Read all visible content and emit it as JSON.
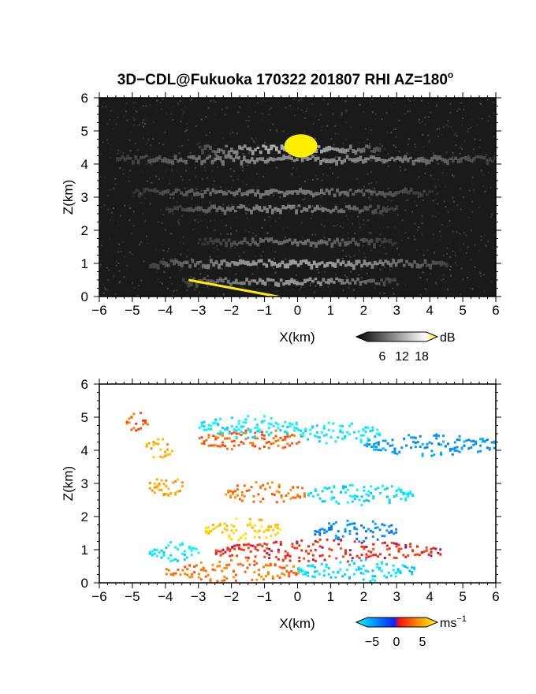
{
  "chart_data": [
    {
      "type": "heatmap",
      "title": "3D−CDL@Fukuoka 170322 201807 RHI AZ=180",
      "title_superscript": "o",
      "xlabel": "X(km)",
      "ylabel": "Z(km)",
      "xlim": [
        -6,
        6
      ],
      "ylim": [
        0,
        6
      ],
      "x_ticks": [
        "−6",
        "−5",
        "−4",
        "−3",
        "−2",
        "−1",
        "0",
        "1",
        "2",
        "3",
        "4",
        "5",
        "6"
      ],
      "y_ticks": [
        "0",
        "1",
        "2",
        "3",
        "4",
        "5",
        "6"
      ],
      "colorbar": {
        "label": "dB",
        "ticks": [
          "6",
          "12",
          "18"
        ],
        "range": [
          0,
          21
        ],
        "colormap": "grayscale"
      },
      "features": [
        {
          "kind": "layer",
          "z": 4.1,
          "x": [
            -5.5,
            6
          ],
          "intensity": 10
        },
        {
          "kind": "layer",
          "z": 4.4,
          "x": [
            -3,
            2.5
          ],
          "intensity": 14
        },
        {
          "kind": "layer",
          "z": 3.1,
          "x": [
            -5,
            4
          ],
          "intensity": 8
        },
        {
          "kind": "layer",
          "z": 2.6,
          "x": [
            -4,
            3
          ],
          "intensity": 9
        },
        {
          "kind": "layer",
          "z": 1.6,
          "x": [
            -3,
            3
          ],
          "intensity": 7
        },
        {
          "kind": "layer",
          "z": 0.95,
          "x": [
            -4.5,
            4.5
          ],
          "intensity": 12
        },
        {
          "kind": "layer",
          "z": 0.4,
          "x": [
            -3.5,
            3
          ],
          "intensity": 11
        },
        {
          "kind": "saturated",
          "x": [
            -0.4,
            0.6
          ],
          "z": [
            4.2,
            4.9
          ],
          "color": "#ffee00"
        },
        {
          "kind": "terrain",
          "x": [
            -3.3,
            -0.6
          ],
          "z": [
            0.5,
            0.0
          ],
          "color": "#ffee00"
        }
      ]
    },
    {
      "type": "heatmap",
      "xlabel": "X(km)",
      "ylabel": "Z(km)",
      "xlim": [
        -6,
        6
      ],
      "ylim": [
        0,
        6
      ],
      "x_ticks": [
        "−6",
        "−5",
        "−4",
        "−3",
        "−2",
        "−1",
        "0",
        "1",
        "2",
        "3",
        "4",
        "5",
        "6"
      ],
      "y_ticks": [
        "0",
        "1",
        "2",
        "3",
        "4",
        "5",
        "6"
      ],
      "colorbar": {
        "label": "ms",
        "label_superscript": "−1",
        "ticks": [
          "−5",
          "0",
          "5"
        ],
        "range": [
          -7,
          7
        ],
        "colormap": "doppler"
      },
      "features": [
        {
          "z": 4.9,
          "x": [
            -5.2,
            -4.5
          ],
          "v": 2.5
        },
        {
          "z": 4.1,
          "x": [
            -4.6,
            -3.8
          ],
          "v": 4.5
        },
        {
          "z": 4.35,
          "x": [
            -3.0,
            0.1
          ],
          "v": 2.5
        },
        {
          "z": 4.75,
          "x": [
            -3.0,
            0.0
          ],
          "v": -6.5
        },
        {
          "z": 4.55,
          "x": [
            0.0,
            2.5
          ],
          "v": -6.5
        },
        {
          "z": 4.2,
          "x": [
            2.0,
            6.0
          ],
          "v": -4.0
        },
        {
          "z": 2.95,
          "x": [
            -4.5,
            -3.5
          ],
          "v": 4.5
        },
        {
          "z": 2.75,
          "x": [
            -2.2,
            0.2
          ],
          "v": 3.0
        },
        {
          "z": 2.7,
          "x": [
            0.3,
            3.5
          ],
          "v": -6.0
        },
        {
          "z": 1.65,
          "x": [
            -2.8,
            -0.5
          ],
          "v": 5.5
        },
        {
          "z": 1.6,
          "x": [
            0.5,
            3.0
          ],
          "v": -3.5
        },
        {
          "z": 1.0,
          "x": [
            -2.5,
            4.3
          ],
          "v": 1.0
        },
        {
          "z": 0.95,
          "x": [
            -4.5,
            -3.0
          ],
          "v": -6.5
        },
        {
          "z": 0.4,
          "x": [
            -4.0,
            0.0
          ],
          "v": 3.0
        },
        {
          "z": 0.4,
          "x": [
            0.0,
            3.5
          ],
          "v": -6.0
        }
      ]
    }
  ]
}
